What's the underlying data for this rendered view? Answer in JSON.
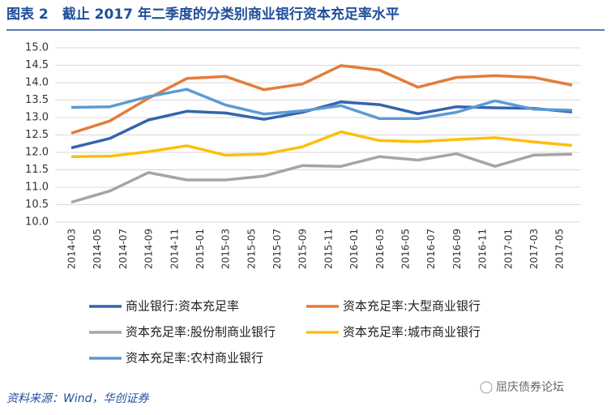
{
  "chart_data": {
    "type": "line",
    "title": "图表 2　截止 2017 年二季度的分类别商业银行资本充足率水平",
    "source": "资料来源：Wind，华创证券",
    "watermark": "屈庆债券论坛",
    "x": [
      "2014-03",
      "2014-06",
      "2014-09",
      "2014-12",
      "2015-03",
      "2015-06",
      "2015-09",
      "2015-12",
      "2016-03",
      "2016-06",
      "2016-09",
      "2016-12",
      "2017-03",
      "2017-06"
    ],
    "xlim": [
      "2014-03",
      "2017-06"
    ],
    "xticks": [
      "2014-03",
      "2014-05",
      "2014-07",
      "2014-09",
      "2014-11",
      "2015-01",
      "2015-03",
      "2015-05",
      "2015-07",
      "2015-09",
      "2015-11",
      "2016-01",
      "2016-03",
      "2016-05",
      "2016-07",
      "2016-09",
      "2016-11",
      "2017-01",
      "2017-03",
      "2017-05"
    ],
    "ylim": [
      10,
      15
    ],
    "yticks": [
      {
        "value": 10,
        "label": "10.0"
      },
      {
        "value": 10.5,
        "label": "10.5"
      },
      {
        "value": 11,
        "label": "11.0"
      },
      {
        "value": 11.5,
        "label": "11.5"
      },
      {
        "value": 12,
        "label": "12.0"
      },
      {
        "value": 12.5,
        "label": "12.5"
      },
      {
        "value": 13,
        "label": "13.0"
      },
      {
        "value": 13.5,
        "label": "13.5"
      },
      {
        "value": 14,
        "label": "14.0"
      },
      {
        "value": 14.5,
        "label": "14.5"
      },
      {
        "value": 15,
        "label": "15.0"
      }
    ],
    "grid": true,
    "legend": "bottom",
    "series": [
      {
        "name": "商业银行:资本充足率",
        "color": "#3464ae",
        "values": [
          12.13,
          12.4,
          12.93,
          13.18,
          13.13,
          12.95,
          13.15,
          13.45,
          13.37,
          13.11,
          13.31,
          13.28,
          13.26,
          13.16
        ]
      },
      {
        "name": "资本充足率:大型商业银行",
        "color": "#e47c3a",
        "values": [
          12.55,
          12.9,
          13.55,
          14.12,
          14.18,
          13.8,
          13.96,
          14.49,
          14.36,
          13.87,
          14.15,
          14.2,
          14.15,
          13.93
        ]
      },
      {
        "name": "资本充足率:股份制商业银行",
        "color": "#a5a5a5",
        "values": [
          10.57,
          10.89,
          11.42,
          11.21,
          11.21,
          11.32,
          11.62,
          11.6,
          11.88,
          11.78,
          11.96,
          11.6,
          11.92,
          11.95
        ]
      },
      {
        "name": "资本充足率:城市商业银行",
        "color": "#fcc00a",
        "values": [
          11.88,
          11.89,
          12.02,
          12.19,
          11.92,
          11.95,
          12.16,
          12.59,
          12.34,
          12.31,
          12.37,
          12.42,
          12.3,
          12.2
        ]
      },
      {
        "name": "资本充足率:农村商业银行",
        "color": "#5b9bd5",
        "values": [
          13.29,
          13.31,
          13.6,
          13.81,
          13.36,
          13.1,
          13.19,
          13.34,
          12.97,
          12.97,
          13.15,
          13.48,
          13.24,
          13.21
        ]
      }
    ]
  }
}
